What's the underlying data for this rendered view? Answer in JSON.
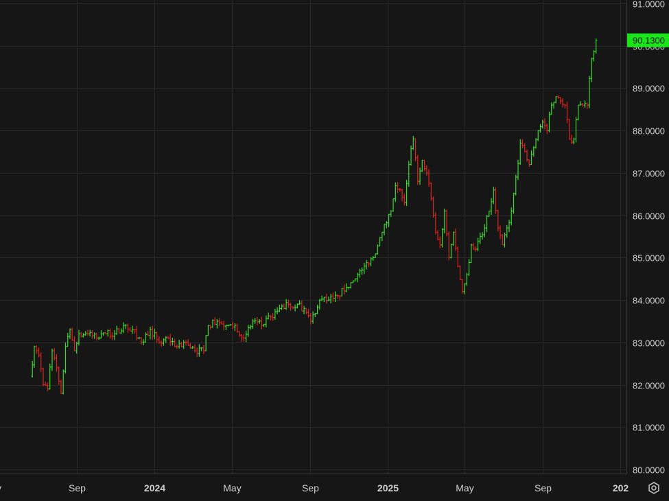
{
  "chart_data": {
    "type": "ohlc",
    "title": "",
    "xlabel": "",
    "ylabel": "",
    "ylim": [
      80.0,
      91.0
    ],
    "y_ticks": [
      "91.0000",
      "90.0000",
      "89.0000",
      "88.0000",
      "87.0000",
      "86.0000",
      "85.0000",
      "84.0000",
      "83.0000",
      "82.0000",
      "81.0000",
      "80.0000"
    ],
    "x_ticks": [
      {
        "label": "y",
        "date": "2023-05-01"
      },
      {
        "label": "Sep",
        "date": "2023-09-01"
      },
      {
        "label": "2024",
        "date": "2024-01-01"
      },
      {
        "label": "May",
        "date": "2024-05-01"
      },
      {
        "label": "Sep",
        "date": "2024-09-01"
      },
      {
        "label": "2025",
        "date": "2025-01-01"
      },
      {
        "label": "May",
        "date": "2025-05-01"
      },
      {
        "label": "Sep",
        "date": "2025-09-01"
      },
      {
        "label": "202",
        "date": "2026-01-01"
      }
    ],
    "last_price": "90.1300",
    "grid": true,
    "colors": {
      "up": "#3cdc2c",
      "down": "#e0241c",
      "last_price_label": "#19e619"
    },
    "series": [
      {
        "values": [
          [
            "2023-06-20",
            82.2
          ],
          [
            "2023-06-26",
            82.9
          ],
          [
            "2023-07-03",
            82.7
          ],
          [
            "2023-07-10",
            82.0
          ],
          [
            "2023-07-17",
            81.9
          ],
          [
            "2023-07-24",
            82.8
          ],
          [
            "2023-07-31",
            82.4
          ],
          [
            "2023-08-07",
            81.8
          ],
          [
            "2023-08-14",
            82.9
          ],
          [
            "2023-08-21",
            83.3
          ],
          [
            "2023-08-28",
            82.8
          ],
          [
            "2023-09-04",
            83.2
          ],
          [
            "2023-09-18",
            83.2
          ],
          [
            "2023-10-02",
            83.1
          ],
          [
            "2023-10-16",
            83.2
          ],
          [
            "2023-10-30",
            83.2
          ],
          [
            "2023-11-13",
            83.4
          ],
          [
            "2023-11-27",
            83.3
          ],
          [
            "2023-12-11",
            83.0
          ],
          [
            "2023-12-25",
            83.3
          ],
          [
            "2024-01-08",
            83.0
          ],
          [
            "2024-01-22",
            83.1
          ],
          [
            "2024-02-05",
            82.9
          ],
          [
            "2024-02-19",
            83.0
          ],
          [
            "2024-03-04",
            82.8
          ],
          [
            "2024-03-18",
            82.8
          ],
          [
            "2024-03-25",
            83.4
          ],
          [
            "2024-04-08",
            83.5
          ],
          [
            "2024-04-22",
            83.4
          ],
          [
            "2024-05-06",
            83.4
          ],
          [
            "2024-05-20",
            83.1
          ],
          [
            "2024-06-03",
            83.5
          ],
          [
            "2024-06-17",
            83.4
          ],
          [
            "2024-07-01",
            83.6
          ],
          [
            "2024-07-15",
            83.8
          ],
          [
            "2024-07-29",
            83.9
          ],
          [
            "2024-08-12",
            83.9
          ],
          [
            "2024-08-26",
            83.7
          ],
          [
            "2024-09-02",
            83.5
          ],
          [
            "2024-09-16",
            84.0
          ],
          [
            "2024-09-30",
            84.0
          ],
          [
            "2024-10-14",
            84.1
          ],
          [
            "2024-10-28",
            84.3
          ],
          [
            "2024-11-11",
            84.5
          ],
          [
            "2024-11-25",
            84.8
          ],
          [
            "2024-12-09",
            85.0
          ],
          [
            "2024-12-23",
            85.6
          ],
          [
            "2025-01-06",
            86.1
          ],
          [
            "2025-01-13",
            86.7
          ],
          [
            "2025-01-20",
            86.6
          ],
          [
            "2025-01-27",
            86.3
          ],
          [
            "2025-02-03",
            87.2
          ],
          [
            "2025-02-10",
            87.8
          ],
          [
            "2025-02-17",
            86.8
          ],
          [
            "2025-02-24",
            87.3
          ],
          [
            "2025-03-03",
            87.0
          ],
          [
            "2025-03-10",
            86.4
          ],
          [
            "2025-03-17",
            85.6
          ],
          [
            "2025-03-24",
            85.3
          ],
          [
            "2025-03-31",
            86.1
          ],
          [
            "2025-04-07",
            85.0
          ],
          [
            "2025-04-14",
            85.6
          ],
          [
            "2025-04-21",
            84.8
          ],
          [
            "2025-04-28",
            84.2
          ],
          [
            "2025-05-05",
            84.6
          ],
          [
            "2025-05-12",
            85.3
          ],
          [
            "2025-05-19",
            85.2
          ],
          [
            "2025-05-26",
            85.5
          ],
          [
            "2025-06-02",
            85.7
          ],
          [
            "2025-06-09",
            86.1
          ],
          [
            "2025-06-16",
            86.6
          ],
          [
            "2025-06-23",
            85.7
          ],
          [
            "2025-06-30",
            85.3
          ],
          [
            "2025-07-07",
            85.7
          ],
          [
            "2025-07-14",
            86.1
          ],
          [
            "2025-07-21",
            86.9
          ],
          [
            "2025-07-28",
            87.7
          ],
          [
            "2025-08-04",
            87.5
          ],
          [
            "2025-08-11",
            87.2
          ],
          [
            "2025-08-18",
            87.6
          ],
          [
            "2025-08-25",
            88.0
          ],
          [
            "2025-09-01",
            88.2
          ],
          [
            "2025-09-08",
            88.0
          ],
          [
            "2025-09-15",
            88.6
          ],
          [
            "2025-09-22",
            88.8
          ],
          [
            "2025-09-29",
            88.7
          ],
          [
            "2025-10-06",
            88.6
          ],
          [
            "2025-10-13",
            87.8
          ],
          [
            "2025-10-20",
            87.8
          ],
          [
            "2025-10-27",
            88.6
          ],
          [
            "2025-11-03",
            88.6
          ],
          [
            "2025-11-10",
            88.6
          ],
          [
            "2025-11-17",
            89.7
          ],
          [
            "2025-11-24",
            90.13
          ]
        ]
      }
    ]
  }
}
